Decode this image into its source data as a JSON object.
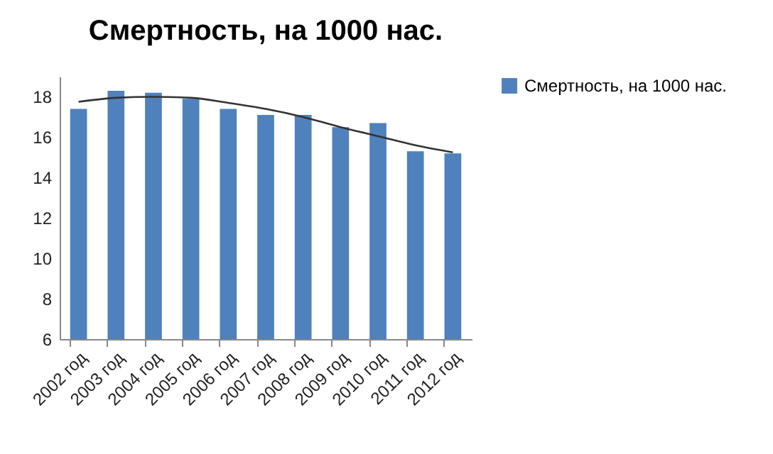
{
  "chart_data": {
    "type": "bar",
    "title": "Смертность, на 1000 нас.",
    "categories": [
      "2002 год",
      "2003 год",
      "2004 год",
      "2005 год",
      "2006 год",
      "2007 год",
      "2008 год",
      "2009 год",
      "2010 год",
      "2011 год",
      "2012 год"
    ],
    "series": [
      {
        "name": "Смертность, на 1000 нас.",
        "color": "#4f81bd",
        "values": [
          17.4,
          18.3,
          18.2,
          17.9,
          17.4,
          17.1,
          17.1,
          16.5,
          16.7,
          15.3,
          15.2
        ]
      },
      {
        "type": "line",
        "color": "#333333",
        "x": [
          "2002 год",
          "2003 год",
          "2004 год",
          "2005 год",
          "2006 год",
          "2007 год",
          "2008 год",
          "2009 год",
          "2010 год",
          "2011 год",
          "2012 год"
        ],
        "values": [
          17.75,
          17.95,
          18.0,
          17.95,
          17.7,
          17.4,
          17.0,
          16.5,
          16.05,
          15.6,
          15.25
        ]
      }
    ],
    "ylim": [
      6,
      19
    ],
    "yticks": [
      6,
      8,
      10,
      12,
      14,
      16,
      18
    ],
    "grid": false,
    "legend": "right"
  }
}
